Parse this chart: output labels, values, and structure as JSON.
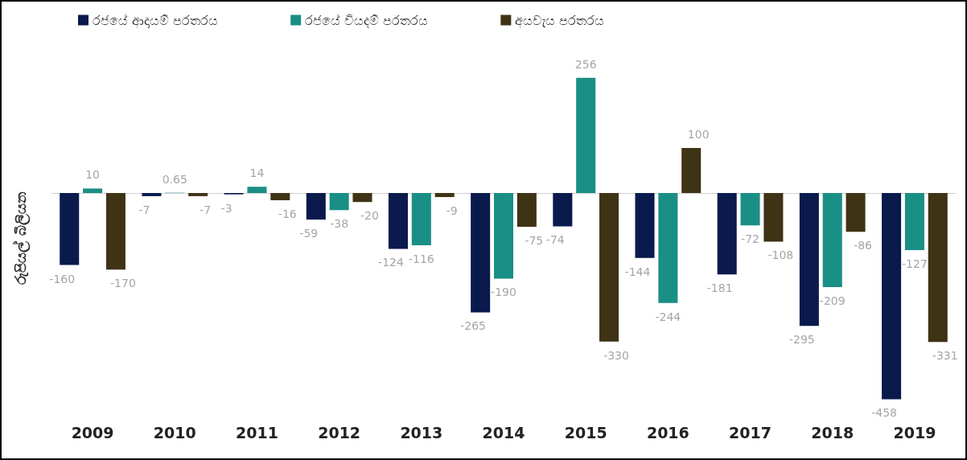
{
  "chart_data": {
    "type": "bar",
    "ylabel": "රුපියල් බිලියන",
    "categories": [
      "2009",
      "2010",
      "2011",
      "2012",
      "2013",
      "2014",
      "2015",
      "2016",
      "2017",
      "2018",
      "2019"
    ],
    "series": [
      {
        "name": "රජයේ ආදායම් පරතරය",
        "color": "#0b1a4d",
        "values": [
          -160,
          -7,
          -3,
          -59,
          -124,
          -265,
          -74,
          -144,
          -181,
          -295,
          -458
        ]
      },
      {
        "name": "රජයේ වියදම් පරතරය",
        "color": "#1a8f85",
        "values": [
          10,
          0.65,
          14,
          -38,
          -116,
          -190,
          256,
          -244,
          -72,
          -209,
          -127
        ]
      },
      {
        "name": "අයවැය පරතරය",
        "color": "#3f3316",
        "values": [
          -170,
          -7,
          -16,
          -20,
          -9,
          -75,
          -330,
          100,
          -108,
          -86,
          -331
        ]
      }
    ],
    "relative": false,
    "data_labels": true,
    "grid": false,
    "legend": "top left"
  }
}
